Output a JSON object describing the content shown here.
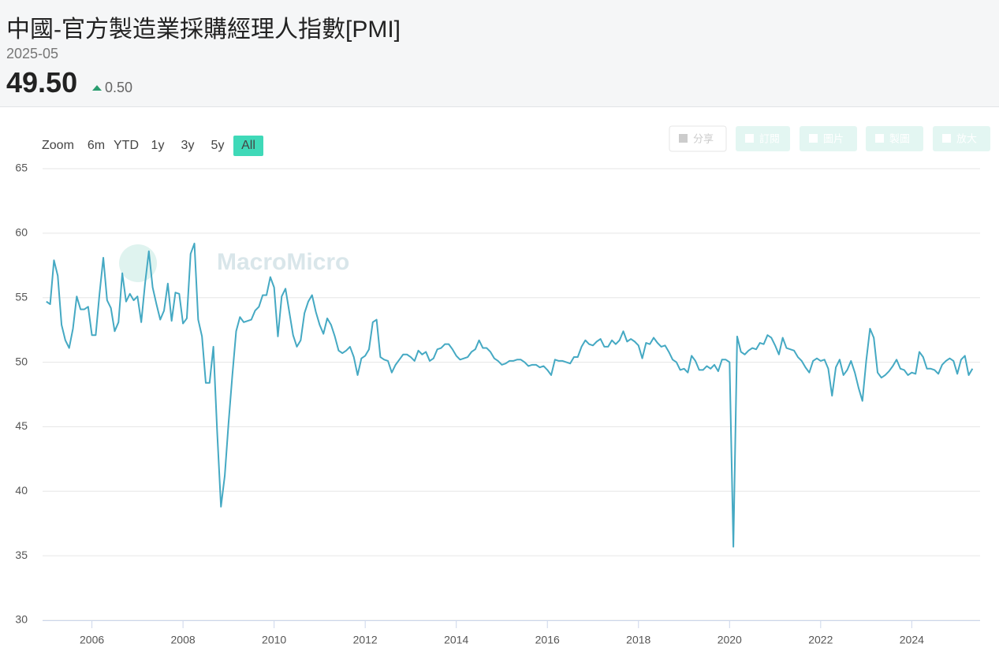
{
  "header": {
    "title": "中國-官方製造業採購經理人指數[PMI]",
    "date": "2025-05",
    "value": "49.50",
    "change": "0.50"
  },
  "toolbar": {
    "zoom_label": "Zoom",
    "ranges": [
      "6m",
      "YTD",
      "1y",
      "3y",
      "5y",
      "All"
    ],
    "selected": "All",
    "actions": [
      "分享",
      "訂閱",
      "圖片",
      "製圖",
      "放大"
    ]
  },
  "watermark": "MacroMicro",
  "chart_data": {
    "type": "line",
    "color": "#45a9c3",
    "grid": true,
    "ylim": [
      30,
      65
    ],
    "yticks": [
      30,
      35,
      40,
      45,
      50,
      55,
      60,
      65
    ],
    "xlim": [
      "2004-12",
      "2025-07"
    ],
    "xticks": [
      2006,
      2008,
      2010,
      2012,
      2014,
      2016,
      2018,
      2020,
      2022,
      2024
    ],
    "x": [
      "2005-01",
      "2005-02",
      "2005-03",
      "2005-04",
      "2005-05",
      "2005-06",
      "2005-07",
      "2005-08",
      "2005-09",
      "2005-10",
      "2005-11",
      "2005-12",
      "2006-01",
      "2006-02",
      "2006-03",
      "2006-04",
      "2006-05",
      "2006-06",
      "2006-07",
      "2006-08",
      "2006-09",
      "2006-10",
      "2006-11",
      "2006-12",
      "2007-01",
      "2007-02",
      "2007-03",
      "2007-04",
      "2007-05",
      "2007-06",
      "2007-07",
      "2007-08",
      "2007-09",
      "2007-10",
      "2007-11",
      "2007-12",
      "2008-01",
      "2008-02",
      "2008-03",
      "2008-04",
      "2008-05",
      "2008-06",
      "2008-07",
      "2008-08",
      "2008-09",
      "2008-10",
      "2008-11",
      "2008-12",
      "2009-01",
      "2009-02",
      "2009-03",
      "2009-04",
      "2009-05",
      "2009-06",
      "2009-07",
      "2009-08",
      "2009-09",
      "2009-10",
      "2009-11",
      "2009-12",
      "2010-01",
      "2010-02",
      "2010-03",
      "2010-04",
      "2010-05",
      "2010-06",
      "2010-07",
      "2010-08",
      "2010-09",
      "2010-10",
      "2010-11",
      "2010-12",
      "2011-01",
      "2011-02",
      "2011-03",
      "2011-04",
      "2011-05",
      "2011-06",
      "2011-07",
      "2011-08",
      "2011-09",
      "2011-10",
      "2011-11",
      "2011-12",
      "2012-01",
      "2012-02",
      "2012-03",
      "2012-04",
      "2012-05",
      "2012-06",
      "2012-07",
      "2012-08",
      "2012-09",
      "2012-10",
      "2012-11",
      "2012-12",
      "2013-01",
      "2013-02",
      "2013-03",
      "2013-04",
      "2013-05",
      "2013-06",
      "2013-07",
      "2013-08",
      "2013-09",
      "2013-10",
      "2013-11",
      "2013-12",
      "2014-01",
      "2014-02",
      "2014-03",
      "2014-04",
      "2014-05",
      "2014-06",
      "2014-07",
      "2014-08",
      "2014-09",
      "2014-10",
      "2014-11",
      "2014-12",
      "2015-01",
      "2015-02",
      "2015-03",
      "2015-04",
      "2015-05",
      "2015-06",
      "2015-07",
      "2015-08",
      "2015-09",
      "2015-10",
      "2015-11",
      "2015-12",
      "2016-01",
      "2016-02",
      "2016-03",
      "2016-04",
      "2016-05",
      "2016-06",
      "2016-07",
      "2016-08",
      "2016-09",
      "2016-10",
      "2016-11",
      "2016-12",
      "2017-01",
      "2017-02",
      "2017-03",
      "2017-04",
      "2017-05",
      "2017-06",
      "2017-07",
      "2017-08",
      "2017-09",
      "2017-10",
      "2017-11",
      "2017-12",
      "2018-01",
      "2018-02",
      "2018-03",
      "2018-04",
      "2018-05",
      "2018-06",
      "2018-07",
      "2018-08",
      "2018-09",
      "2018-10",
      "2018-11",
      "2018-12",
      "2019-01",
      "2019-02",
      "2019-03",
      "2019-04",
      "2019-05",
      "2019-06",
      "2019-07",
      "2019-08",
      "2019-09",
      "2019-10",
      "2019-11",
      "2019-12",
      "2020-01",
      "2020-02",
      "2020-03",
      "2020-04",
      "2020-05",
      "2020-06",
      "2020-07",
      "2020-08",
      "2020-09",
      "2020-10",
      "2020-11",
      "2020-12",
      "2021-01",
      "2021-02",
      "2021-03",
      "2021-04",
      "2021-05",
      "2021-06",
      "2021-07",
      "2021-08",
      "2021-09",
      "2021-10",
      "2021-11",
      "2021-12",
      "2022-01",
      "2022-02",
      "2022-03",
      "2022-04",
      "2022-05",
      "2022-06",
      "2022-07",
      "2022-08",
      "2022-09",
      "2022-10",
      "2022-11",
      "2022-12",
      "2023-01",
      "2023-02",
      "2023-03",
      "2023-04",
      "2023-05",
      "2023-06",
      "2023-07",
      "2023-08",
      "2023-09",
      "2023-10",
      "2023-11",
      "2023-12",
      "2024-01",
      "2024-02",
      "2024-03",
      "2024-04",
      "2024-05",
      "2024-06",
      "2024-07",
      "2024-08",
      "2024-09",
      "2024-10",
      "2024-11",
      "2024-12",
      "2025-01",
      "2025-02",
      "2025-03",
      "2025-04",
      "2025-05"
    ],
    "values": [
      54.7,
      54.5,
      57.9,
      56.7,
      52.9,
      51.7,
      51.1,
      52.6,
      55.1,
      54.1,
      54.1,
      54.3,
      52.1,
      52.1,
      55.3,
      58.1,
      54.8,
      54.2,
      52.4,
      53.1,
      56.9,
      54.7,
      55.3,
      54.8,
      55.1,
      53.1,
      56.1,
      58.6,
      55.8,
      54.5,
      53.3,
      54.0,
      56.1,
      53.2,
      55.4,
      55.3,
      53.0,
      53.4,
      58.4,
      59.2,
      53.3,
      52.0,
      48.4,
      48.4,
      51.2,
      44.6,
      38.8,
      41.2,
      45.3,
      49.0,
      52.4,
      53.5,
      53.1,
      53.2,
      53.3,
      54.0,
      54.3,
      55.2,
      55.2,
      56.6,
      55.8,
      52.0,
      55.1,
      55.7,
      53.9,
      52.1,
      51.2,
      51.7,
      53.8,
      54.7,
      55.2,
      53.9,
      52.9,
      52.2,
      53.4,
      52.9,
      52.0,
      50.9,
      50.7,
      50.9,
      51.2,
      50.4,
      49.0,
      50.3,
      50.5,
      51.0,
      53.1,
      53.3,
      50.4,
      50.2,
      50.1,
      49.2,
      49.8,
      50.2,
      50.6,
      50.6,
      50.4,
      50.1,
      50.9,
      50.6,
      50.8,
      50.1,
      50.3,
      51.0,
      51.1,
      51.4,
      51.4,
      51.0,
      50.5,
      50.2,
      50.3,
      50.4,
      50.8,
      51.0,
      51.7,
      51.1,
      51.1,
      50.8,
      50.3,
      50.1,
      49.8,
      49.9,
      50.1,
      50.1,
      50.2,
      50.2,
      50.0,
      49.7,
      49.8,
      49.8,
      49.6,
      49.7,
      49.4,
      49.0,
      50.2,
      50.1,
      50.1,
      50.0,
      49.9,
      50.4,
      50.4,
      51.2,
      51.7,
      51.4,
      51.3,
      51.6,
      51.8,
      51.2,
      51.2,
      51.7,
      51.4,
      51.7,
      52.4,
      51.6,
      51.8,
      51.6,
      51.3,
      50.3,
      51.5,
      51.4,
      51.9,
      51.5,
      51.2,
      51.3,
      50.8,
      50.2,
      50.0,
      49.4,
      49.5,
      49.2,
      50.5,
      50.1,
      49.4,
      49.4,
      49.7,
      49.5,
      49.8,
      49.3,
      50.2,
      50.2,
      50.0,
      35.7,
      52.0,
      50.8,
      50.6,
      50.9,
      51.1,
      51.0,
      51.5,
      51.4,
      52.1,
      51.9,
      51.3,
      50.6,
      51.9,
      51.1,
      51.0,
      50.9,
      50.4,
      50.1,
      49.6,
      49.2,
      50.1,
      50.3,
      50.1,
      50.2,
      49.5,
      47.4,
      49.6,
      50.2,
      49.0,
      49.4,
      50.1,
      49.2,
      48.0,
      47.0,
      50.1,
      52.6,
      51.9,
      49.2,
      48.8,
      49.0,
      49.3,
      49.7,
      50.2,
      49.5,
      49.4,
      49.0,
      49.2,
      49.1,
      50.8,
      50.4,
      49.5,
      49.5,
      49.4,
      49.1,
      49.8,
      50.1,
      50.3,
      50.1,
      49.1,
      50.2,
      50.5,
      49.0,
      49.5
    ]
  }
}
